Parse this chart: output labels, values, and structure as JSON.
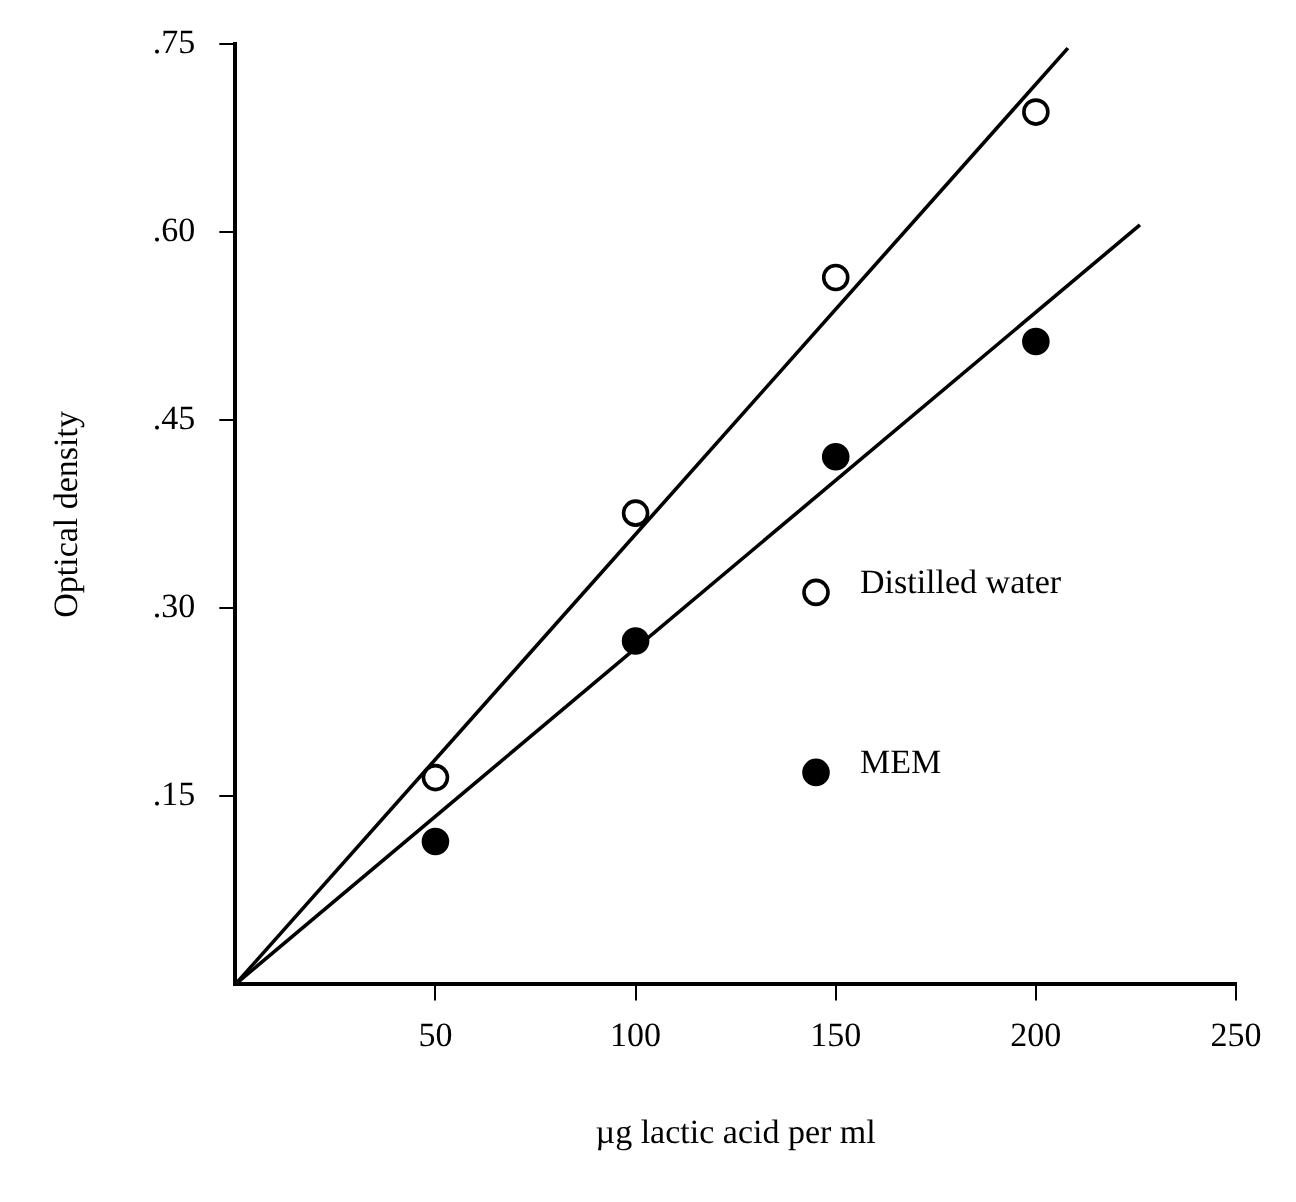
{
  "chart_data": {
    "type": "scatter",
    "xlabel": "µg lactic acid per ml",
    "ylabel": "Optical density",
    "xlim": [
      0,
      250
    ],
    "xticks": [
      50,
      100,
      150,
      200,
      250
    ],
    "ylim": [
      0,
      0.75
    ],
    "yticks": [
      {
        "value": 0.15,
        "label": ".15"
      },
      {
        "value": 0.3,
        "label": ".30"
      },
      {
        "value": 0.45,
        "label": ".45"
      },
      {
        "value": 0.6,
        "label": ".60"
      },
      {
        "value": 0.75,
        "label": ".75"
      }
    ],
    "x": [
      50,
      100,
      150,
      200
    ],
    "series": [
      {
        "name": "Distilled water",
        "color": "#ffffff",
        "marker": "circle",
        "values": [
          0.165,
          0.376,
          0.564,
          0.696
        ]
      },
      {
        "name": "MEM",
        "color": "#000000",
        "marker": "circle",
        "values": [
          0.114,
          0.274,
          0.421,
          0.513
        ]
      },
      {
        "type": "line",
        "color": "#000000",
        "marker": "none",
        "x": [
          0,
          208
        ],
        "values": [
          0,
          0.747
        ]
      },
      {
        "type": "line",
        "color": "#000000",
        "marker": "none",
        "x": [
          0,
          226
        ],
        "values": [
          0,
          0.606
        ]
      }
    ],
    "grid": false,
    "legend": "bottom right"
  }
}
